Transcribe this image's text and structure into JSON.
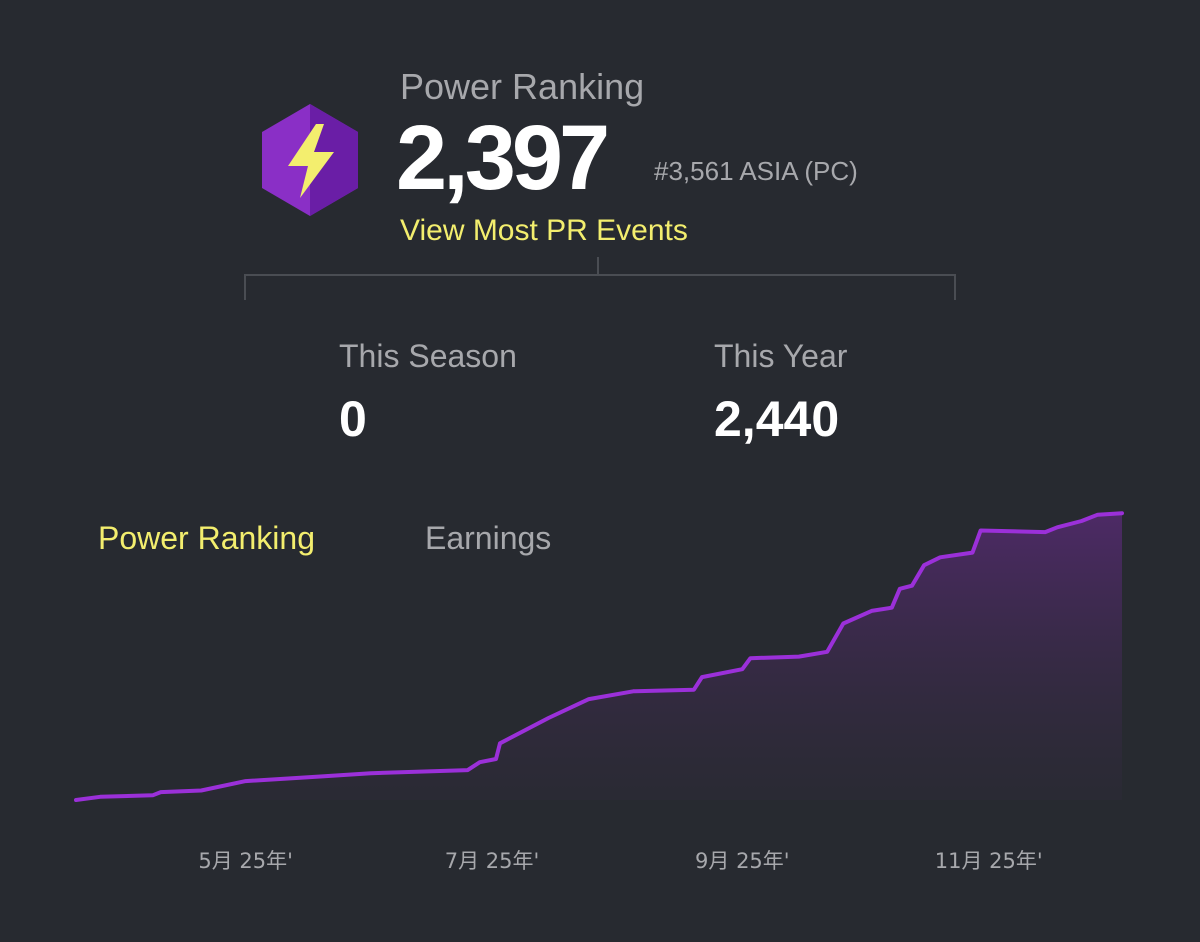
{
  "power_ranking": {
    "heading": "Power Ranking",
    "value": "2,397",
    "regional_rank": "#3,561 ASIA (PC)",
    "view_events_label": "View Most PR Events",
    "badge_icon": "lightning-bolt-icon"
  },
  "stats": {
    "season": {
      "label": "This Season",
      "value": "0"
    },
    "year": {
      "label": "This Year",
      "value": "2,440"
    }
  },
  "tabs": {
    "power_ranking": "Power Ranking",
    "earnings": "Earnings"
  },
  "colors": {
    "background": "#272a30",
    "accent_yellow": "#f3ee6e",
    "line_purple": "#9b30d9",
    "badge_purple": "#8a2fc6"
  },
  "chart_data": {
    "type": "area",
    "x_tick_labels": [
      "5月 25年'",
      "7月 25年'",
      "9月 25年'",
      "11月 25年'"
    ],
    "series": [
      {
        "points": [
          [
            "2025-03-20",
            0
          ],
          [
            "2025-03-26",
            10
          ],
          [
            "2025-04-08",
            15
          ],
          [
            "2025-04-10",
            25
          ],
          [
            "2025-04-20",
            30
          ],
          [
            "2025-05-01",
            60
          ],
          [
            "2025-05-20",
            75
          ],
          [
            "2025-06-01",
            85
          ],
          [
            "2025-06-25",
            95
          ],
          [
            "2025-06-28",
            120
          ],
          [
            "2025-07-02",
            130
          ],
          [
            "2025-07-03",
            180
          ],
          [
            "2025-07-15",
            260
          ],
          [
            "2025-07-25",
            320
          ],
          [
            "2025-08-05",
            345
          ],
          [
            "2025-08-20",
            350
          ],
          [
            "2025-08-22",
            390
          ],
          [
            "2025-09-01",
            415
          ],
          [
            "2025-09-03",
            450
          ],
          [
            "2025-09-15",
            455
          ],
          [
            "2025-09-22",
            470
          ],
          [
            "2025-09-26",
            560
          ],
          [
            "2025-10-03",
            600
          ],
          [
            "2025-10-08",
            610
          ],
          [
            "2025-10-10",
            670
          ],
          [
            "2025-10-13",
            680
          ],
          [
            "2025-10-16",
            745
          ],
          [
            "2025-10-20",
            770
          ],
          [
            "2025-10-28",
            785
          ],
          [
            "2025-10-30",
            855
          ],
          [
            "2025-11-15",
            850
          ],
          [
            "2025-11-18",
            865
          ],
          [
            "2025-11-24",
            885
          ],
          [
            "2025-11-28",
            905
          ],
          [
            "2025-12-04",
            910
          ]
        ]
      }
    ],
    "x_range": [
      "2025-03-20",
      "2025-12-05"
    ],
    "ylim": [
      0,
      920
    ],
    "grid": false
  }
}
